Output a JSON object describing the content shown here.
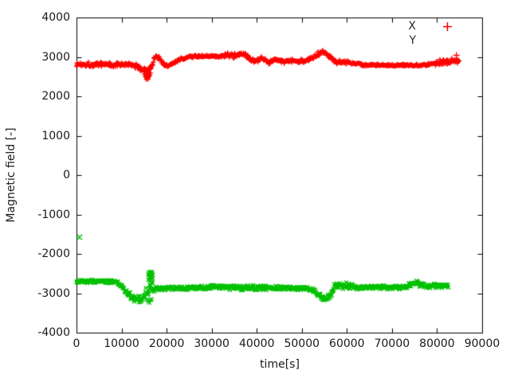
{
  "chart_data": {
    "type": "scatter",
    "title": "",
    "xlabel": "time[s]",
    "ylabel": "Magnetic field [-]",
    "xlim": [
      0,
      90000
    ],
    "ylim": [
      -4000,
      4000
    ],
    "xticks": [
      0,
      10000,
      20000,
      30000,
      40000,
      50000,
      60000,
      70000,
      80000,
      90000
    ],
    "yticks": [
      -4000,
      -3000,
      -2000,
      -1000,
      0,
      1000,
      2000,
      3000,
      4000
    ],
    "grid": false,
    "background": "#ffffff",
    "axis_color": "#000000",
    "legend_position": "top-right",
    "sample_interval_s": 110,
    "series": [
      {
        "name": "X",
        "color": "#ff0000",
        "marker": "plus",
        "legend_sample_visible": true,
        "keyframes": [
          [
            0,
            2810,
            70
          ],
          [
            2000,
            2815,
            75
          ],
          [
            4000,
            2800,
            70
          ],
          [
            6000,
            2830,
            70
          ],
          [
            8000,
            2790,
            75
          ],
          [
            10000,
            2820,
            70
          ],
          [
            12000,
            2795,
            65
          ],
          [
            13500,
            2755,
            70
          ],
          [
            14800,
            2680,
            100
          ],
          [
            15800,
            2640,
            120
          ],
          [
            16600,
            2760,
            90
          ],
          [
            17600,
            3030,
            60
          ],
          [
            18400,
            2965,
            55
          ],
          [
            19300,
            2820,
            60
          ],
          [
            20300,
            2780,
            60
          ],
          [
            21500,
            2840,
            55
          ],
          [
            23000,
            2930,
            50
          ],
          [
            24500,
            2995,
            45
          ],
          [
            26000,
            3015,
            40
          ],
          [
            28000,
            3015,
            40
          ],
          [
            30000,
            3015,
            40
          ],
          [
            32000,
            3020,
            45
          ],
          [
            33500,
            3040,
            70
          ],
          [
            34500,
            3070,
            95
          ],
          [
            35500,
            3030,
            80
          ],
          [
            36500,
            3045,
            75
          ],
          [
            37500,
            3060,
            70
          ],
          [
            38500,
            2950,
            70
          ],
          [
            39800,
            2880,
            70
          ],
          [
            41200,
            2955,
            60
          ],
          [
            42600,
            2870,
            65
          ],
          [
            44000,
            2935,
            60
          ],
          [
            45500,
            2885,
            60
          ],
          [
            47000,
            2900,
            60
          ],
          [
            48500,
            2890,
            60
          ],
          [
            50000,
            2895,
            60
          ],
          [
            51500,
            2915,
            60
          ],
          [
            53000,
            3040,
            70
          ],
          [
            54500,
            3150,
            70
          ],
          [
            55800,
            3050,
            70
          ],
          [
            57000,
            2925,
            70
          ],
          [
            58200,
            2850,
            70
          ],
          [
            59500,
            2880,
            70
          ],
          [
            60800,
            2855,
            60
          ],
          [
            62000,
            2830,
            45
          ],
          [
            63500,
            2795,
            35
          ],
          [
            66000,
            2790,
            30
          ],
          [
            69000,
            2790,
            30
          ],
          [
            72000,
            2790,
            30
          ],
          [
            75000,
            2790,
            32
          ],
          [
            77500,
            2800,
            40
          ],
          [
            79500,
            2850,
            70
          ],
          [
            81000,
            2875,
            85
          ],
          [
            82500,
            2880,
            85
          ],
          [
            83800,
            2915,
            80
          ],
          [
            85000,
            2900,
            70
          ]
        ],
        "extra_points": [
          [
            14950,
            2620
          ],
          [
            15100,
            2560
          ],
          [
            15250,
            2500
          ],
          [
            15400,
            2545
          ],
          [
            15550,
            2470
          ],
          [
            15700,
            2510
          ],
          [
            15850,
            2450
          ],
          [
            16000,
            2490
          ],
          [
            16100,
            2555
          ],
          [
            16250,
            2520
          ],
          [
            16400,
            2590
          ],
          [
            15500,
            2430
          ],
          [
            15900,
            2435
          ],
          [
            16050,
            2610
          ]
        ],
        "outliers": [
          [
            84300,
            3040
          ]
        ]
      },
      {
        "name": "Y",
        "color": "#00c000",
        "marker": "cross",
        "legend_sample_visible": false,
        "keyframes": [
          [
            0,
            -2700,
            50
          ],
          [
            2000,
            -2695,
            50
          ],
          [
            4000,
            -2700,
            50
          ],
          [
            6000,
            -2700,
            50
          ],
          [
            8000,
            -2705,
            50
          ],
          [
            9000,
            -2730,
            55
          ],
          [
            10000,
            -2820,
            70
          ],
          [
            11000,
            -2950,
            85
          ],
          [
            12000,
            -3060,
            95
          ],
          [
            13000,
            -3130,
            105
          ],
          [
            14000,
            -3140,
            115
          ],
          [
            15000,
            -3080,
            160
          ],
          [
            15800,
            -2950,
            260
          ],
          [
            16500,
            -2820,
            280
          ],
          [
            17000,
            -2880,
            150
          ],
          [
            17600,
            -2880,
            80
          ],
          [
            19000,
            -2875,
            70
          ],
          [
            21000,
            -2870,
            65
          ],
          [
            24000,
            -2865,
            60
          ],
          [
            27000,
            -2860,
            60
          ],
          [
            29500,
            -2850,
            70
          ],
          [
            31500,
            -2830,
            80
          ],
          [
            33000,
            -2855,
            70
          ],
          [
            36000,
            -2860,
            70
          ],
          [
            39000,
            -2855,
            75
          ],
          [
            42000,
            -2860,
            70
          ],
          [
            45000,
            -2860,
            65
          ],
          [
            48000,
            -2865,
            60
          ],
          [
            51000,
            -2870,
            60
          ],
          [
            52800,
            -2920,
            70
          ],
          [
            54000,
            -3080,
            90
          ],
          [
            55200,
            -3150,
            85
          ],
          [
            56300,
            -3030,
            100
          ],
          [
            57300,
            -2850,
            110
          ],
          [
            58300,
            -2780,
            115
          ],
          [
            59300,
            -2830,
            105
          ],
          [
            60500,
            -2800,
            95
          ],
          [
            61800,
            -2840,
            75
          ],
          [
            63500,
            -2850,
            60
          ],
          [
            66000,
            -2850,
            60
          ],
          [
            69000,
            -2850,
            60
          ],
          [
            72000,
            -2850,
            60
          ],
          [
            74000,
            -2800,
            80
          ],
          [
            75200,
            -2710,
            110
          ],
          [
            76400,
            -2780,
            95
          ],
          [
            77800,
            -2820,
            70
          ],
          [
            79500,
            -2810,
            70
          ],
          [
            81000,
            -2800,
            75
          ],
          [
            82500,
            -2815,
            65
          ]
        ],
        "extra_points": [
          [
            15900,
            -2520
          ],
          [
            16050,
            -2470
          ],
          [
            16200,
            -2540
          ],
          [
            16350,
            -2480
          ],
          [
            16500,
            -2450
          ],
          [
            16650,
            -2510
          ],
          [
            16800,
            -2470
          ],
          [
            16950,
            -2530
          ],
          [
            16400,
            -2560
          ],
          [
            16100,
            -2600
          ],
          [
            16700,
            -2590
          ],
          [
            16900,
            -2620
          ],
          [
            15950,
            -2660
          ],
          [
            16550,
            -2640
          ],
          [
            16250,
            -2700
          ],
          [
            16750,
            -2720
          ],
          [
            16450,
            -3180
          ],
          [
            16150,
            -3240
          ],
          [
            15850,
            -3200
          ],
          [
            16650,
            -3150
          ]
        ],
        "outliers": [
          [
            700,
            -1575
          ]
        ]
      }
    ]
  }
}
